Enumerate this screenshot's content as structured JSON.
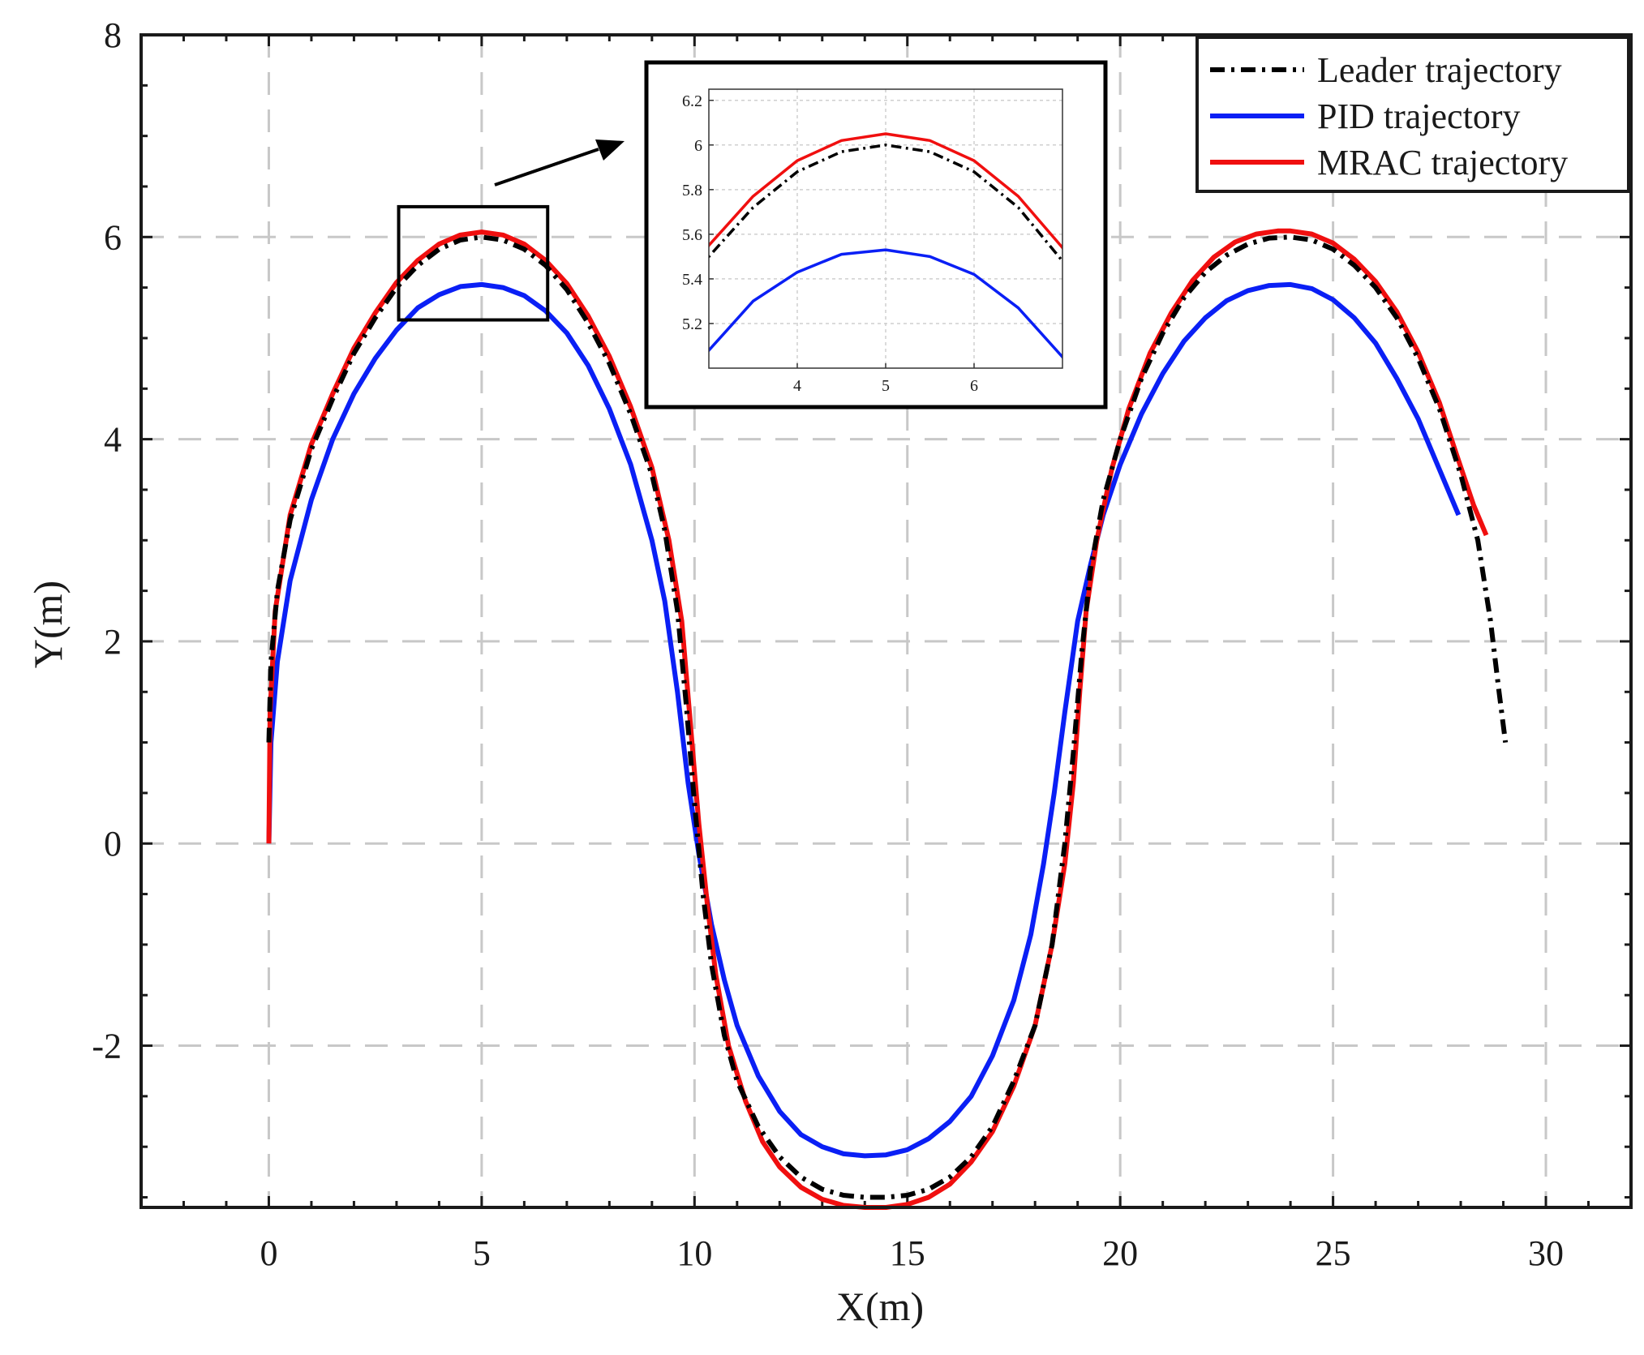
{
  "chart_data": {
    "type": "line",
    "xlabel": "X(m)",
    "ylabel": "Y(m)",
    "xlim": [
      -3,
      32
    ],
    "ylim": [
      -3.6,
      8
    ],
    "x_ticks": [
      0,
      5,
      10,
      15,
      20,
      25,
      30
    ],
    "y_ticks": [
      -2,
      0,
      2,
      4,
      6,
      8
    ],
    "x_tick_labels": [
      "0",
      "5",
      "10",
      "15",
      "20",
      "25",
      "30"
    ],
    "y_tick_labels": [
      "-2",
      "0",
      "2",
      "4",
      "6",
      "8"
    ],
    "grid": true,
    "legend_position": "top-right",
    "series": [
      {
        "name": "Leader trajectory",
        "color": "#000000",
        "style": "dash-dot",
        "points": [
          [
            0,
            1.0
          ],
          [
            0.05,
            1.8
          ],
          [
            0.2,
            2.5
          ],
          [
            0.5,
            3.2
          ],
          [
            1.0,
            3.9
          ],
          [
            1.5,
            4.4
          ],
          [
            2,
            4.85
          ],
          [
            2.5,
            5.2
          ],
          [
            3,
            5.5
          ],
          [
            3.5,
            5.72
          ],
          [
            4,
            5.88
          ],
          [
            4.5,
            5.97
          ],
          [
            5,
            6.0
          ],
          [
            5.5,
            5.97
          ],
          [
            6,
            5.88
          ],
          [
            6.5,
            5.72
          ],
          [
            7,
            5.48
          ],
          [
            7.5,
            5.15
          ],
          [
            8,
            4.75
          ],
          [
            8.5,
            4.25
          ],
          [
            9,
            3.65
          ],
          [
            9.3,
            3.1
          ],
          [
            9.6,
            2.3
          ],
          [
            9.8,
            1.4
          ],
          [
            10,
            0.4
          ],
          [
            10.2,
            -0.5
          ],
          [
            10.4,
            -1.2
          ],
          [
            10.7,
            -1.9
          ],
          [
            11,
            -2.35
          ],
          [
            11.5,
            -2.8
          ],
          [
            12,
            -3.1
          ],
          [
            12.5,
            -3.3
          ],
          [
            13,
            -3.42
          ],
          [
            13.5,
            -3.48
          ],
          [
            14,
            -3.5
          ],
          [
            14.5,
            -3.5
          ],
          [
            15,
            -3.48
          ],
          [
            15.5,
            -3.42
          ],
          [
            16,
            -3.3
          ],
          [
            16.5,
            -3.1
          ],
          [
            17,
            -2.8
          ],
          [
            17.5,
            -2.35
          ],
          [
            18,
            -1.8
          ],
          [
            18.4,
            -1.0
          ],
          [
            18.7,
            0.0
          ],
          [
            18.9,
            0.9
          ],
          [
            19.1,
            1.9
          ],
          [
            19.3,
            2.7
          ],
          [
            19.6,
            3.4
          ],
          [
            20,
            4.0
          ],
          [
            20.5,
            4.6
          ],
          [
            21,
            5.05
          ],
          [
            21.5,
            5.4
          ],
          [
            22,
            5.65
          ],
          [
            22.5,
            5.82
          ],
          [
            23,
            5.93
          ],
          [
            23.5,
            5.99
          ],
          [
            24,
            6.0
          ],
          [
            24.5,
            5.97
          ],
          [
            25,
            5.88
          ],
          [
            25.5,
            5.72
          ],
          [
            26,
            5.5
          ],
          [
            26.5,
            5.2
          ],
          [
            27,
            4.8
          ],
          [
            27.5,
            4.3
          ],
          [
            28,
            3.65
          ],
          [
            28.4,
            3.0
          ],
          [
            28.7,
            2.2
          ],
          [
            28.9,
            1.5
          ],
          [
            29.05,
            1.0
          ]
        ]
      },
      {
        "name": "PID trajectory",
        "color": "#0a1ff5",
        "style": "solid",
        "points": [
          [
            0,
            0.0
          ],
          [
            0.05,
            1.0
          ],
          [
            0.2,
            1.8
          ],
          [
            0.5,
            2.6
          ],
          [
            1.0,
            3.4
          ],
          [
            1.5,
            4.0
          ],
          [
            2,
            4.45
          ],
          [
            2.5,
            4.8
          ],
          [
            3,
            5.08
          ],
          [
            3.5,
            5.3
          ],
          [
            4,
            5.43
          ],
          [
            4.5,
            5.51
          ],
          [
            5,
            5.53
          ],
          [
            5.5,
            5.5
          ],
          [
            6,
            5.42
          ],
          [
            6.5,
            5.27
          ],
          [
            7,
            5.05
          ],
          [
            7.5,
            4.73
          ],
          [
            8,
            4.3
          ],
          [
            8.5,
            3.75
          ],
          [
            9,
            3.0
          ],
          [
            9.3,
            2.4
          ],
          [
            9.6,
            1.5
          ],
          [
            9.85,
            0.6
          ],
          [
            10.1,
            -0.1
          ],
          [
            10.4,
            -0.8
          ],
          [
            10.7,
            -1.35
          ],
          [
            11,
            -1.8
          ],
          [
            11.5,
            -2.3
          ],
          [
            12,
            -2.65
          ],
          [
            12.5,
            -2.88
          ],
          [
            13,
            -3.0
          ],
          [
            13.5,
            -3.07
          ],
          [
            14,
            -3.09
          ],
          [
            14.5,
            -3.08
          ],
          [
            15,
            -3.03
          ],
          [
            15.5,
            -2.92
          ],
          [
            16,
            -2.75
          ],
          [
            16.5,
            -2.5
          ],
          [
            17,
            -2.1
          ],
          [
            17.5,
            -1.55
          ],
          [
            17.9,
            -0.9
          ],
          [
            18.2,
            -0.2
          ],
          [
            18.45,
            0.5
          ],
          [
            18.7,
            1.3
          ],
          [
            19,
            2.2
          ],
          [
            19.3,
            2.75
          ],
          [
            19.6,
            3.25
          ],
          [
            20,
            3.75
          ],
          [
            20.5,
            4.25
          ],
          [
            21,
            4.65
          ],
          [
            21.5,
            4.97
          ],
          [
            22,
            5.2
          ],
          [
            22.5,
            5.37
          ],
          [
            23,
            5.47
          ],
          [
            23.5,
            5.52
          ],
          [
            24,
            5.53
          ],
          [
            24.5,
            5.49
          ],
          [
            25,
            5.38
          ],
          [
            25.5,
            5.2
          ],
          [
            26,
            4.95
          ],
          [
            26.5,
            4.6
          ],
          [
            27,
            4.2
          ],
          [
            27.5,
            3.7
          ],
          [
            27.95,
            3.25
          ]
        ]
      },
      {
        "name": "MRAC trajectory",
        "color": "#f00f0f",
        "style": "solid",
        "points": [
          [
            0,
            0.0
          ],
          [
            0.03,
            1.3
          ],
          [
            0.15,
            2.3
          ],
          [
            0.5,
            3.25
          ],
          [
            1.0,
            3.95
          ],
          [
            1.5,
            4.45
          ],
          [
            2,
            4.9
          ],
          [
            2.5,
            5.25
          ],
          [
            3,
            5.55
          ],
          [
            3.5,
            5.77
          ],
          [
            4,
            5.93
          ],
          [
            4.5,
            6.02
          ],
          [
            5,
            6.05
          ],
          [
            5.5,
            6.02
          ],
          [
            6,
            5.93
          ],
          [
            6.5,
            5.77
          ],
          [
            7,
            5.54
          ],
          [
            7.5,
            5.22
          ],
          [
            8,
            4.82
          ],
          [
            8.5,
            4.32
          ],
          [
            9,
            3.72
          ],
          [
            9.4,
            3.0
          ],
          [
            9.7,
            2.2
          ],
          [
            9.9,
            1.2
          ],
          [
            10.1,
            0.2
          ],
          [
            10.3,
            -0.6
          ],
          [
            10.5,
            -1.3
          ],
          [
            10.8,
            -2.0
          ],
          [
            11.2,
            -2.55
          ],
          [
            11.6,
            -2.95
          ],
          [
            12,
            -3.2
          ],
          [
            12.5,
            -3.4
          ],
          [
            13,
            -3.52
          ],
          [
            13.5,
            -3.58
          ],
          [
            14,
            -3.6
          ],
          [
            14.5,
            -3.6
          ],
          [
            15,
            -3.57
          ],
          [
            15.5,
            -3.5
          ],
          [
            16,
            -3.37
          ],
          [
            16.5,
            -3.15
          ],
          [
            17,
            -2.85
          ],
          [
            17.5,
            -2.4
          ],
          [
            18,
            -1.8
          ],
          [
            18.4,
            -1.0
          ],
          [
            18.7,
            -0.2
          ],
          [
            18.9,
            0.6
          ],
          [
            19.05,
            1.5
          ],
          [
            19.2,
            2.3
          ],
          [
            19.45,
            3.0
          ],
          [
            19.8,
            3.7
          ],
          [
            20.2,
            4.3
          ],
          [
            20.7,
            4.85
          ],
          [
            21.2,
            5.25
          ],
          [
            21.7,
            5.57
          ],
          [
            22.2,
            5.8
          ],
          [
            22.7,
            5.95
          ],
          [
            23.2,
            6.03
          ],
          [
            23.7,
            6.06
          ],
          [
            24,
            6.06
          ],
          [
            24.5,
            6.03
          ],
          [
            25,
            5.94
          ],
          [
            25.5,
            5.78
          ],
          [
            26,
            5.56
          ],
          [
            26.5,
            5.26
          ],
          [
            27,
            4.86
          ],
          [
            27.5,
            4.36
          ],
          [
            27.9,
            3.85
          ],
          [
            28.3,
            3.35
          ],
          [
            28.6,
            3.05
          ]
        ]
      }
    ],
    "inset": {
      "xlim": [
        3,
        7
      ],
      "ylim": [
        5.0,
        6.25
      ],
      "x_ticks": [
        4,
        5,
        6
      ],
      "y_ticks": [
        5.2,
        5.4,
        5.6,
        5.8,
        6.0,
        6.2
      ],
      "x_tick_labels": [
        "4",
        "5",
        "6"
      ],
      "y_tick_labels": [
        "5.2",
        "5.4",
        "5.6",
        "5.8",
        "6",
        "6.2"
      ],
      "source_box": {
        "x": [
          3.05,
          6.55
        ],
        "y": [
          5.18,
          6.3
        ]
      }
    }
  }
}
